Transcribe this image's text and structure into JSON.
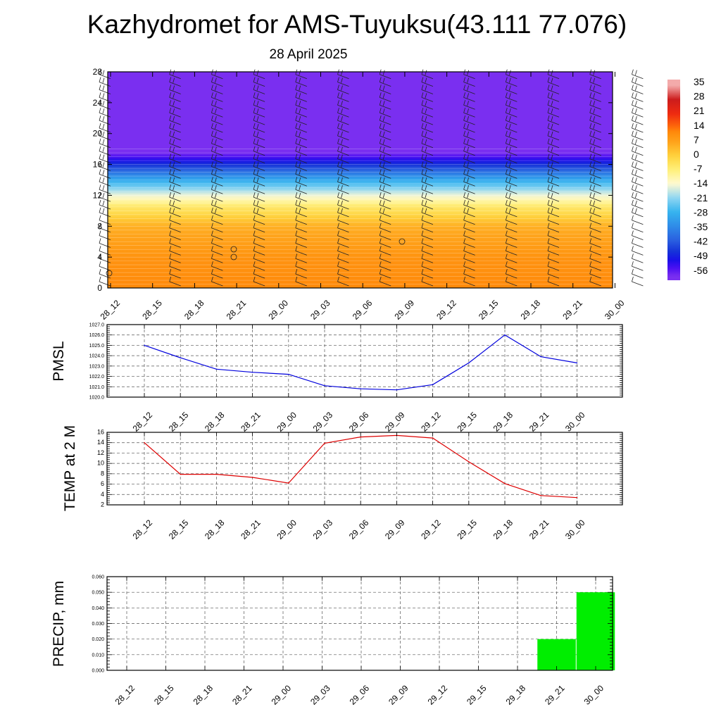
{
  "title": "Kazhydromet for AMS-Tuyuksu(43.111 77.076)",
  "subtitle": "28 April 2025",
  "times": [
    "28_12",
    "28_15",
    "28_18",
    "28_21",
    "29_00",
    "29_03",
    "29_06",
    "29_09",
    "29_12",
    "29_15",
    "29_18",
    "29_21",
    "30_00"
  ],
  "colors": {
    "pmsl_line": "#0000dd",
    "temp_line": "#dd0000",
    "precip_bar": "#00ee00",
    "profile_top": "#7c2ff0"
  },
  "chart_data": [
    {
      "type": "heatmap",
      "name": "temperature-wind-profile",
      "title": "",
      "xlabel": "",
      "ylabel": "",
      "yticks": [
        0,
        4,
        8,
        12,
        16,
        20,
        24,
        28
      ],
      "ylim": [
        0,
        28
      ],
      "colorbar_labels": [
        "35",
        "28",
        "21",
        "14",
        "7",
        "0",
        "-7",
        "-14",
        "-21",
        "-28",
        "-35",
        "-42",
        "-49",
        "-56"
      ],
      "colorbar_values": [
        35,
        28,
        21,
        14,
        7,
        0,
        -7,
        -14,
        -21,
        -28,
        -35,
        -42,
        -49,
        -56
      ],
      "temperature_bands": [
        {
          "height": 0,
          "value": 12
        },
        {
          "height": 4,
          "value": 10
        },
        {
          "height": 8,
          "value": 5
        },
        {
          "height": 10.5,
          "value": -5
        },
        {
          "height": 12,
          "value": -15
        },
        {
          "height": 14,
          "value": -30
        },
        {
          "height": 16,
          "value": -48
        },
        {
          "height": 17.5,
          "value": -60
        },
        {
          "height": 28,
          "value": -60
        }
      ]
    },
    {
      "type": "line",
      "name": "pmsl",
      "ylabel": "PMSL",
      "categories": [
        "28_12",
        "28_15",
        "28_18",
        "28_21",
        "29_00",
        "29_03",
        "29_06",
        "29_09",
        "29_12",
        "29_15",
        "29_18",
        "29_21",
        "30_00"
      ],
      "values": [
        1025.0,
        1023.8,
        1022.7,
        1022.4,
        1022.2,
        1021.1,
        1020.8,
        1020.7,
        1021.2,
        1023.3,
        1026.0,
        1023.9,
        1023.3
      ],
      "ylim": [
        1020.0,
        1027.0
      ],
      "yticks": [
        "1020.0",
        "1021.0",
        "1022.0",
        "1023.0",
        "1024.0",
        "1025.0",
        "1026.0",
        "1027.0"
      ],
      "grid": true
    },
    {
      "type": "line",
      "name": "temp2m",
      "ylabel": "TEMP at 2 M",
      "categories": [
        "28_12",
        "28_15",
        "28_18",
        "28_21",
        "29_00",
        "29_03",
        "29_06",
        "29_09",
        "29_12",
        "29_15",
        "29_18",
        "29_21",
        "30_00"
      ],
      "values": [
        14.0,
        7.9,
        7.9,
        7.3,
        6.2,
        13.9,
        15.1,
        15.4,
        14.9,
        10.3,
        6.1,
        3.8,
        3.4
      ],
      "ylim": [
        2,
        16
      ],
      "yticks": [
        "2",
        "4",
        "6",
        "8",
        "10",
        "12",
        "14",
        "16"
      ],
      "grid": true
    },
    {
      "type": "bar",
      "name": "precip",
      "ylabel": "PRECIP, mm",
      "categories": [
        "28_12",
        "28_15",
        "28_18",
        "28_21",
        "29_00",
        "29_03",
        "29_06",
        "29_09",
        "29_12",
        "29_15",
        "29_18",
        "29_21",
        "30_00"
      ],
      "values": [
        0,
        0,
        0,
        0,
        0,
        0,
        0,
        0,
        0,
        0,
        0,
        0.02,
        0.05
      ],
      "ylim": [
        0,
        0.06
      ],
      "yticks": [
        "0.000",
        "0.010",
        "0.020",
        "0.030",
        "0.040",
        "0.050",
        "0.060"
      ],
      "grid": true
    }
  ]
}
